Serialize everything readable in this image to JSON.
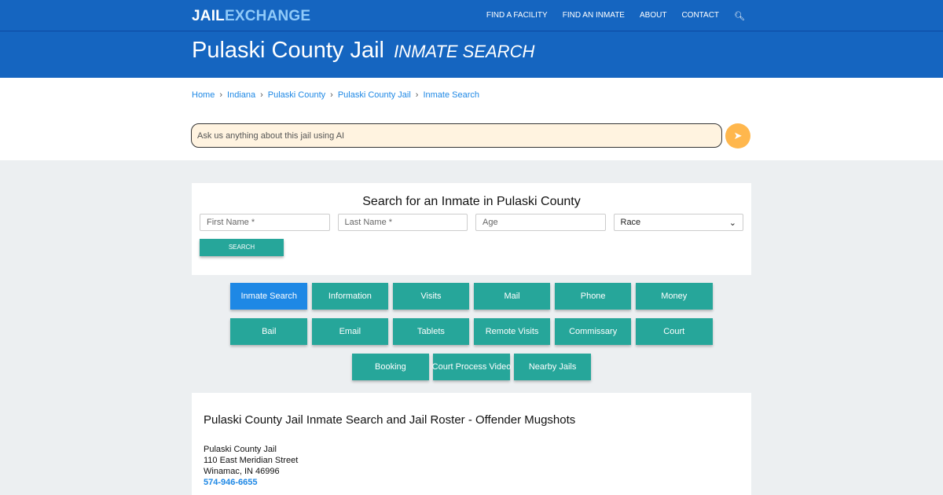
{
  "header": {
    "logo_a": "JAIL",
    "logo_b": "EXCHANGE",
    "nav": [
      "FIND A FACILITY",
      "FIND AN INMATE",
      "ABOUT",
      "CONTACT"
    ],
    "title": "Pulaski County Jail",
    "subtitle": "INMATE SEARCH"
  },
  "breadcrumb": [
    "Home",
    "Indiana",
    "Pulaski County",
    "Pulaski County Jail",
    "Inmate Search"
  ],
  "ai": {
    "placeholder": "Ask us anything about this jail using AI"
  },
  "search": {
    "title": "Search for an Inmate in Pulaski County",
    "first": "First Name *",
    "last": "Last Name *",
    "age": "Age",
    "race": "Race",
    "button": "SEARCH"
  },
  "buttons": [
    "Inmate Search",
    "Information",
    "Visits",
    "Mail",
    "Phone",
    "Money",
    "Bail",
    "Email",
    "Tablets",
    "Remote Visits",
    "Commissary",
    "Court",
    "Booking",
    "Court Process Video",
    "Nearby Jails"
  ],
  "content": {
    "heading": "Pulaski County Jail Inmate Search and Jail Roster - Offender Mugshots",
    "name": "Pulaski County Jail",
    "street": "110 East Meridian Street",
    "city": "Winamac, IN 46996",
    "phone": "574-946-6655"
  },
  "colors": {
    "brand": "#1565c0",
    "button": "#26a69a",
    "active": "#1e88e5"
  }
}
